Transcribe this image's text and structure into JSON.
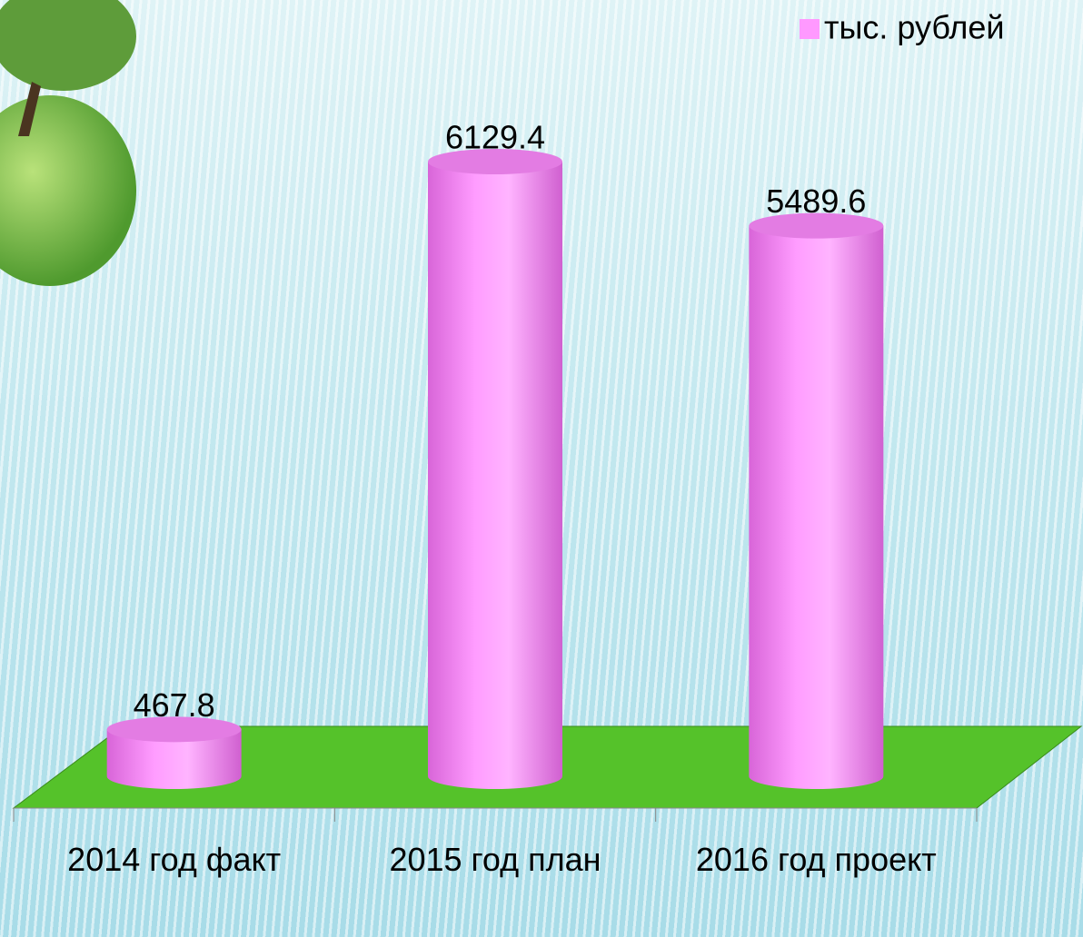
{
  "chart_data": {
    "type": "bar3d-cylinder",
    "categories": [
      "2014 год факт",
      "2015 год план",
      "2016 год проект"
    ],
    "series": [
      {
        "name": "тыс. рублей",
        "color": "#ff99ff",
        "values": [
          467.8,
          6129.4,
          5489.6
        ]
      }
    ],
    "legend": "top-right",
    "floor_color": "#55c22a"
  }
}
